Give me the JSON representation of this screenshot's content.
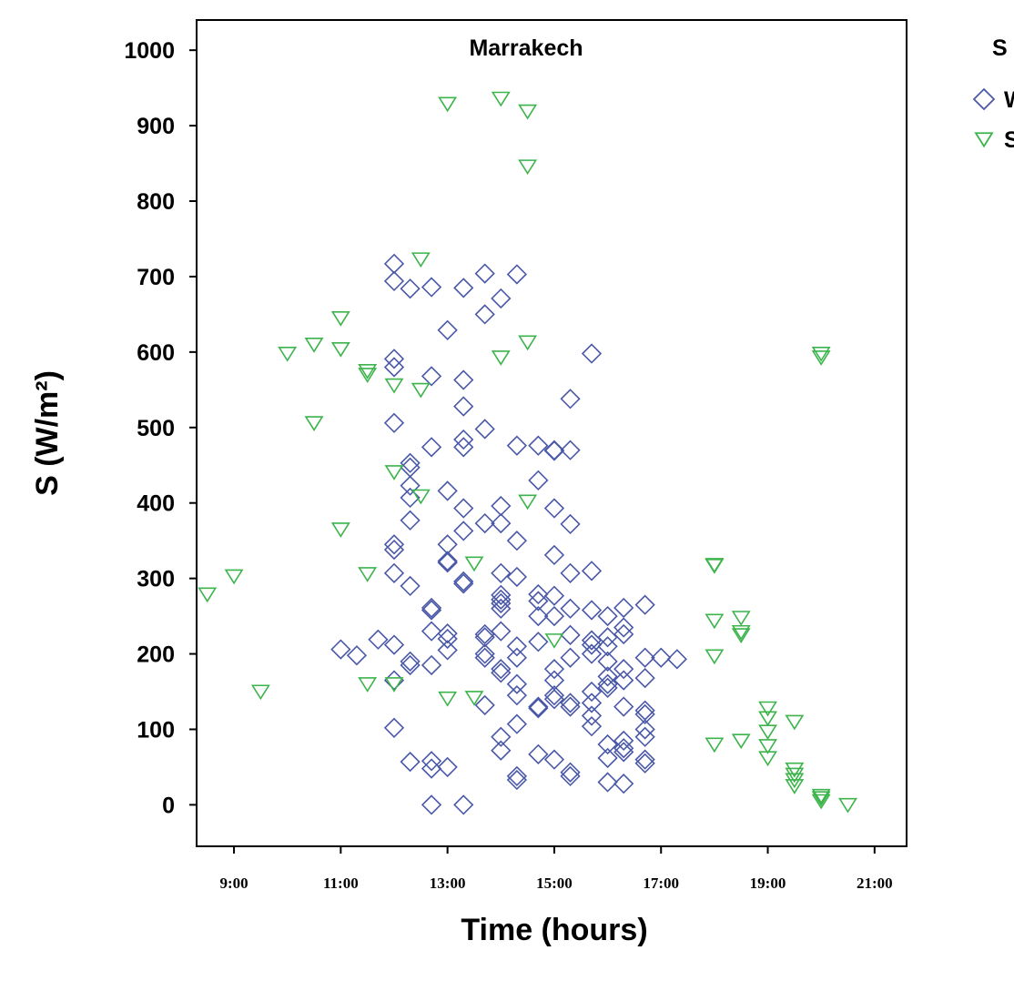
{
  "chart_data": {
    "type": "scatter",
    "title": "Marrakech",
    "xlabel": "Time (hours)",
    "ylabel": "S (W/m²)",
    "xlim": [
      8.3,
      21.6
    ],
    "ylim": [
      -55,
      1040
    ],
    "x_ticks": [
      9,
      11,
      13,
      15,
      17,
      19,
      21
    ],
    "x_tick_labels": [
      "9:00",
      "11:00",
      "13:00",
      "15:00",
      "17:00",
      "19:00",
      "21:00"
    ],
    "y_ticks": [
      0,
      100,
      200,
      300,
      400,
      500,
      600,
      700,
      800,
      900,
      1000
    ],
    "y_tick_labels": [
      "0",
      "100",
      "200",
      "300",
      "400",
      "500",
      "600",
      "700",
      "800",
      "900",
      "1000"
    ],
    "grid": false,
    "legend": {
      "title": "S",
      "placement": "top-right",
      "entries": [
        "W",
        "S"
      ]
    },
    "series": [
      {
        "name": "W",
        "marker": "diamond",
        "color": "#4a58a8",
        "points": [
          [
            12.0,
            717
          ],
          [
            12.0,
            694
          ],
          [
            12.3,
            684
          ],
          [
            12.7,
            686
          ],
          [
            13.3,
            685
          ],
          [
            13.7,
            704
          ],
          [
            14.0,
            671
          ],
          [
            14.3,
            703
          ],
          [
            13.0,
            629
          ],
          [
            13.7,
            650
          ],
          [
            15.7,
            598
          ],
          [
            12.0,
            591
          ],
          [
            12.0,
            580
          ],
          [
            12.7,
            568
          ],
          [
            13.3,
            563
          ],
          [
            13.3,
            528
          ],
          [
            15.3,
            538
          ],
          [
            12.0,
            506
          ],
          [
            13.3,
            484
          ],
          [
            13.3,
            474
          ],
          [
            13.7,
            498
          ],
          [
            12.7,
            474
          ],
          [
            14.3,
            476
          ],
          [
            14.7,
            476
          ],
          [
            15.0,
            470
          ],
          [
            15.0,
            469
          ],
          [
            15.3,
            470
          ],
          [
            12.3,
            453
          ],
          [
            12.3,
            447
          ],
          [
            12.3,
            423
          ],
          [
            12.3,
            407
          ],
          [
            12.3,
            377
          ],
          [
            14.7,
            430
          ],
          [
            13.0,
            416
          ],
          [
            13.3,
            393
          ],
          [
            14.0,
            396
          ],
          [
            15.0,
            393
          ],
          [
            13.7,
            373
          ],
          [
            14.0,
            373
          ],
          [
            15.3,
            372
          ],
          [
            13.3,
            363
          ],
          [
            14.3,
            350
          ],
          [
            12.0,
            345
          ],
          [
            12.0,
            338
          ],
          [
            13.0,
            345
          ],
          [
            13.0,
            323
          ],
          [
            13.0,
            321
          ],
          [
            13.3,
            296
          ],
          [
            13.3,
            293
          ],
          [
            12.0,
            307
          ],
          [
            14.0,
            307
          ],
          [
            14.3,
            302
          ],
          [
            15.0,
            331
          ],
          [
            15.3,
            307
          ],
          [
            15.7,
            310
          ],
          [
            12.3,
            290
          ],
          [
            12.7,
            261
          ],
          [
            12.7,
            258
          ],
          [
            14.0,
            278
          ],
          [
            14.0,
            272
          ],
          [
            14.0,
            267
          ],
          [
            14.0,
            260
          ],
          [
            14.7,
            279
          ],
          [
            14.7,
            270
          ],
          [
            15.0,
            277
          ],
          [
            15.3,
            260
          ],
          [
            15.7,
            258
          ],
          [
            16.0,
            250
          ],
          [
            16.3,
            261
          ],
          [
            16.3,
            235
          ],
          [
            16.7,
            265
          ],
          [
            16.3,
            226
          ],
          [
            14.7,
            250
          ],
          [
            15.0,
            250
          ],
          [
            14.0,
            230
          ],
          [
            13.7,
            226
          ],
          [
            13.7,
            222
          ],
          [
            13.0,
            227
          ],
          [
            13.0,
            220
          ],
          [
            12.7,
            230
          ],
          [
            15.3,
            225
          ],
          [
            15.7,
            218
          ],
          [
            15.7,
            212
          ],
          [
            16.0,
            222
          ],
          [
            16.0,
            210
          ],
          [
            11.0,
            206
          ],
          [
            11.3,
            198
          ],
          [
            11.7,
            219
          ],
          [
            12.0,
            212
          ],
          [
            12.3,
            190
          ],
          [
            12.3,
            185
          ],
          [
            12.7,
            185
          ],
          [
            13.0,
            205
          ],
          [
            13.7,
            200
          ],
          [
            13.7,
            195
          ],
          [
            14.0,
            180
          ],
          [
            14.0,
            175
          ],
          [
            14.3,
            195
          ],
          [
            14.3,
            210
          ],
          [
            14.7,
            216
          ],
          [
            15.0,
            180
          ],
          [
            15.0,
            165
          ],
          [
            15.3,
            195
          ],
          [
            15.7,
            200
          ],
          [
            16.0,
            190
          ],
          [
            16.3,
            180
          ],
          [
            16.7,
            195
          ],
          [
            17.0,
            195
          ],
          [
            17.3,
            193
          ],
          [
            16.0,
            170
          ],
          [
            16.3,
            165
          ],
          [
            16.7,
            168
          ],
          [
            12.0,
            165
          ],
          [
            14.3,
            160
          ],
          [
            14.3,
            145
          ],
          [
            14.7,
            130
          ],
          [
            14.7,
            128
          ],
          [
            15.0,
            145
          ],
          [
            15.0,
            140
          ],
          [
            15.3,
            135
          ],
          [
            15.3,
            130
          ],
          [
            15.7,
            150
          ],
          [
            15.7,
            135
          ],
          [
            15.7,
            118
          ],
          [
            16.0,
            160
          ],
          [
            16.0,
            155
          ],
          [
            16.3,
            130
          ],
          [
            16.7,
            125
          ],
          [
            16.7,
            120
          ],
          [
            13.7,
            132
          ],
          [
            14.3,
            107
          ],
          [
            14.0,
            90
          ],
          [
            14.0,
            72
          ],
          [
            15.7,
            104
          ],
          [
            16.0,
            80
          ],
          [
            16.0,
            62
          ],
          [
            16.3,
            75
          ],
          [
            16.7,
            100
          ],
          [
            16.7,
            90
          ],
          [
            12.0,
            102
          ],
          [
            12.3,
            57
          ],
          [
            12.7,
            58
          ],
          [
            12.7,
            48
          ],
          [
            13.0,
            50
          ],
          [
            14.7,
            67
          ],
          [
            15.0,
            60
          ],
          [
            15.3,
            43
          ],
          [
            15.3,
            38
          ],
          [
            14.3,
            38
          ],
          [
            14.3,
            33
          ],
          [
            16.0,
            30
          ],
          [
            16.3,
            28
          ],
          [
            16.3,
            70
          ],
          [
            16.7,
            60
          ],
          [
            16.7,
            55
          ],
          [
            12.7,
            0
          ],
          [
            13.3,
            0
          ],
          [
            16.3,
            85
          ]
        ]
      },
      {
        "name": "S",
        "marker": "triangle-down",
        "color": "#3cb44b",
        "points": [
          [
            13.0,
            929
          ],
          [
            14.0,
            936
          ],
          [
            14.5,
            919
          ],
          [
            14.5,
            846
          ],
          [
            12.5,
            723
          ],
          [
            11.0,
            645
          ],
          [
            10.0,
            598
          ],
          [
            10.5,
            610
          ],
          [
            11.0,
            604
          ],
          [
            14.5,
            613
          ],
          [
            14.0,
            593
          ],
          [
            11.5,
            575
          ],
          [
            11.5,
            570
          ],
          [
            12.0,
            556
          ],
          [
            12.5,
            550
          ],
          [
            10.5,
            506
          ],
          [
            12.0,
            441
          ],
          [
            12.5,
            409
          ],
          [
            14.5,
            402
          ],
          [
            11.0,
            365
          ],
          [
            11.5,
            306
          ],
          [
            13.5,
            320
          ],
          [
            8.5,
            279
          ],
          [
            9.0,
            303
          ],
          [
            9.5,
            150
          ],
          [
            11.5,
            160
          ],
          [
            12.0,
            160
          ],
          [
            13.0,
            141
          ],
          [
            13.5,
            142
          ],
          [
            15.0,
            218
          ],
          [
            18.0,
            318
          ],
          [
            18.0,
            317
          ],
          [
            18.0,
            244
          ],
          [
            18.5,
            248
          ],
          [
            18.5,
            229
          ],
          [
            18.5,
            225
          ],
          [
            18.0,
            197
          ],
          [
            18.0,
            80
          ],
          [
            18.5,
            85
          ],
          [
            19.0,
            128
          ],
          [
            19.0,
            115
          ],
          [
            19.0,
            97
          ],
          [
            19.0,
            78
          ],
          [
            19.0,
            62
          ],
          [
            19.5,
            110
          ],
          [
            19.5,
            47
          ],
          [
            19.5,
            40
          ],
          [
            19.5,
            33
          ],
          [
            19.5,
            25
          ],
          [
            20.0,
            12
          ],
          [
            20.0,
            9
          ],
          [
            20.0,
            5
          ],
          [
            20.5,
            0
          ],
          [
            20.0,
            598
          ],
          [
            20.0,
            593
          ]
        ]
      }
    ]
  }
}
